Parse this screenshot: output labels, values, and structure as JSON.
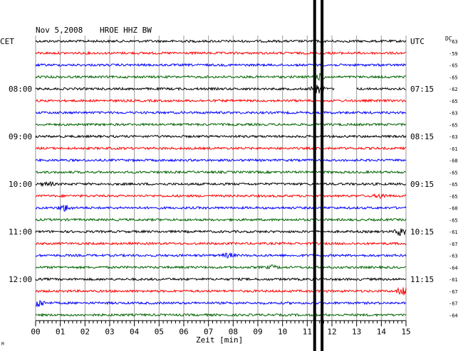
{
  "header": {
    "date": "Nov 5,2008",
    "station": "HROE HHZ BW",
    "left_zone": "CET",
    "right_zone": "UTC",
    "dc_label": "DC"
  },
  "corner_mark": "M",
  "colors": {
    "black": "#000000",
    "red": "#ff0000",
    "blue": "#0000ff",
    "green": "#006400",
    "gridline": "#999999"
  },
  "chart_data": {
    "type": "line",
    "title": "Nov 5,2008   HROE HHZ BW",
    "xlabel": "Zeit [min]",
    "xlim": [
      0,
      15
    ],
    "x_ticks": [
      "00",
      "01",
      "02",
      "03",
      "04",
      "05",
      "06",
      "07",
      "08",
      "09",
      "10",
      "11",
      "12",
      "13",
      "14",
      "15"
    ],
    "trace_color_cycle": [
      "black",
      "red",
      "blue",
      "green"
    ],
    "left_time_labels": [
      {
        "row": 4,
        "label": "08:00"
      },
      {
        "row": 8,
        "label": "09:00"
      },
      {
        "row": 12,
        "label": "10:00"
      },
      {
        "row": 16,
        "label": "11:00"
      },
      {
        "row": 20,
        "label": "12:00"
      }
    ],
    "right_time_labels": [
      {
        "row": 0,
        "label": "UTC"
      },
      {
        "row": 4,
        "label": "07:15"
      },
      {
        "row": 8,
        "label": "08:15"
      },
      {
        "row": 12,
        "label": "09:15"
      },
      {
        "row": 16,
        "label": "10:15"
      },
      {
        "row": 20,
        "label": "11:15"
      }
    ],
    "dc_offsets": [
      "-63",
      "-59",
      "-65",
      "-65",
      "-62",
      "-65",
      "-63",
      "-65",
      "-63",
      "-61",
      "-68",
      "-65",
      "-65",
      "-65",
      "-60",
      "-65",
      "-61",
      "-67",
      "-63",
      "-64",
      "-61",
      "-67",
      "-67",
      "-64"
    ],
    "event_marker_minutes": [
      11.3,
      11.6
    ],
    "bursts": [
      {
        "row": 4,
        "minute": 11.4,
        "amplitude": 1.0
      },
      {
        "row": 3,
        "minute": 11.5,
        "amplitude": 0.5
      },
      {
        "row": 12,
        "minute": 0.5,
        "amplitude": 0.35
      },
      {
        "row": 13,
        "minute": 14.0,
        "amplitude": 0.4
      },
      {
        "row": 14,
        "minute": 1.2,
        "amplitude": 0.6
      },
      {
        "row": 16,
        "minute": 14.8,
        "amplitude": 0.8
      },
      {
        "row": 18,
        "minute": 7.8,
        "amplitude": 0.4
      },
      {
        "row": 19,
        "minute": 9.6,
        "amplitude": 0.3
      },
      {
        "row": 21,
        "minute": 14.9,
        "amplitude": 1.0
      },
      {
        "row": 22,
        "minute": 0.1,
        "amplitude": 0.9
      }
    ],
    "gap": {
      "row": 4,
      "from_minute": 12.1,
      "to_minute": 13.0
    }
  }
}
